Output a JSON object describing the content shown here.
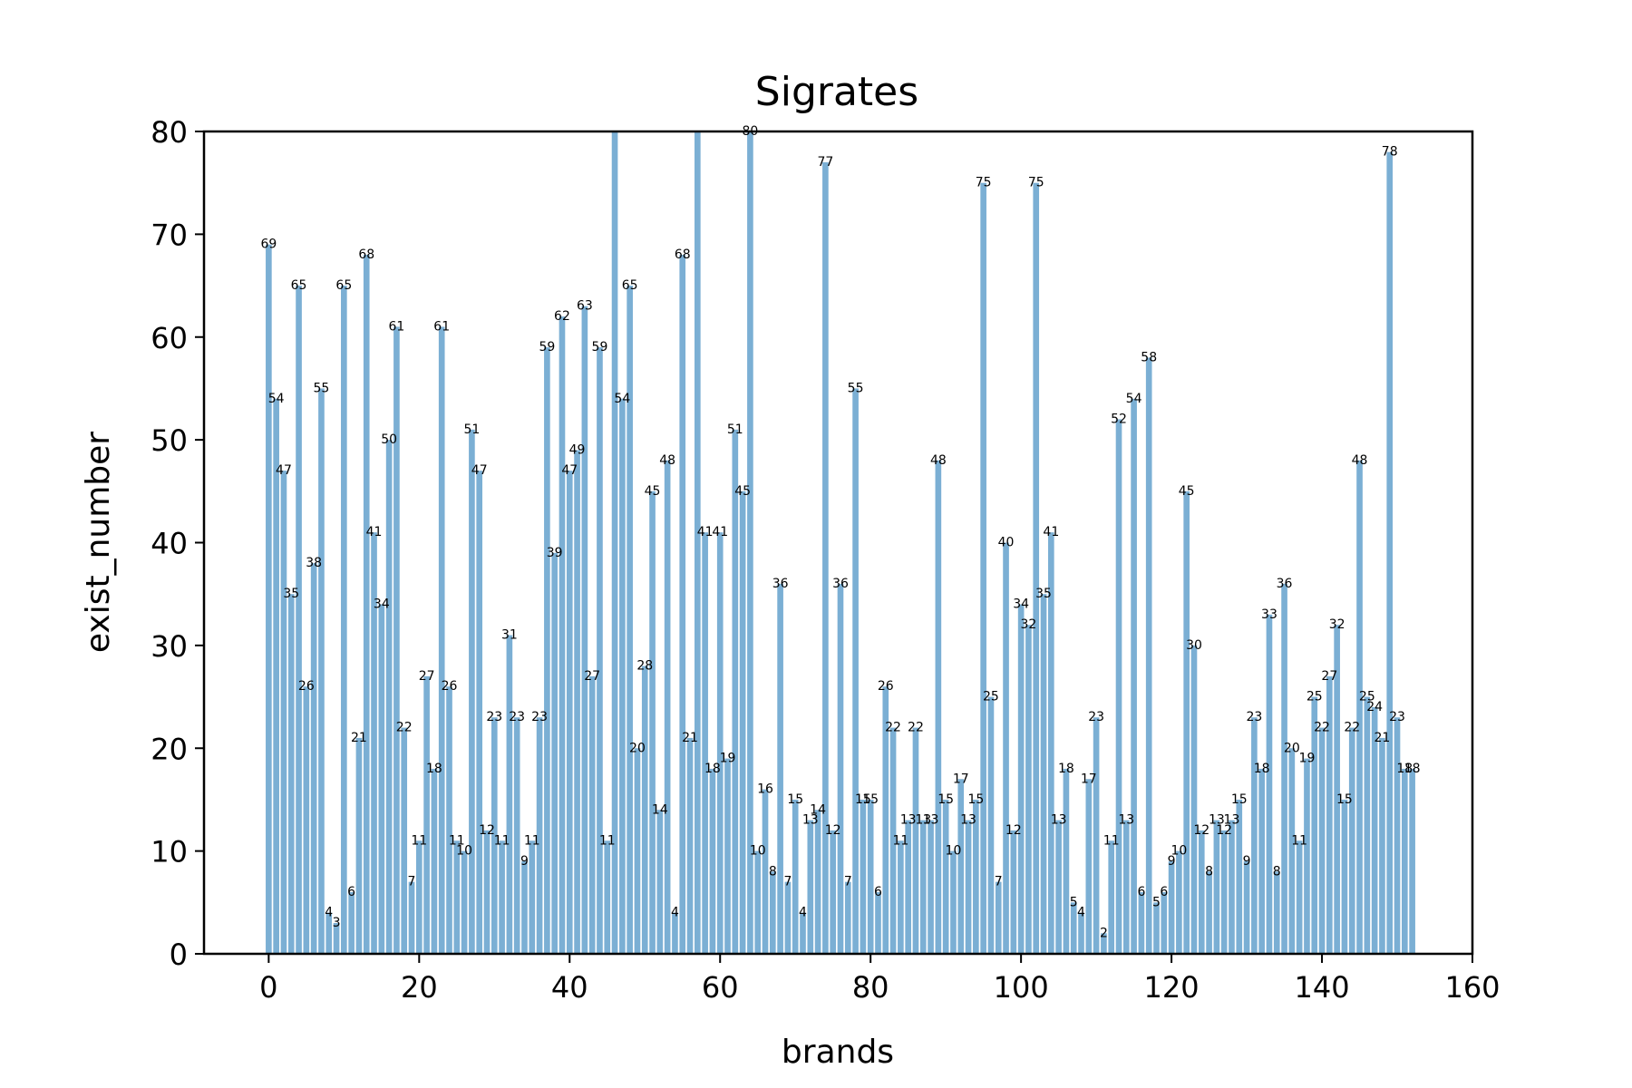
{
  "chart_data": {
    "type": "bar",
    "title": "Sigrates",
    "xlabel": "brands",
    "ylabel": "exist_number",
    "xlim": [
      -8.6,
      160
    ],
    "ylim": [
      0,
      80
    ],
    "xticks": [
      0,
      20,
      40,
      60,
      80,
      100,
      120,
      140,
      160
    ],
    "yticks": [
      0,
      10,
      20,
      30,
      40,
      50,
      60,
      70,
      80
    ],
    "grid": false,
    "bar_color": "#7bafd4",
    "x": [
      0,
      1,
      2,
      3,
      4,
      5,
      6,
      7,
      8,
      9,
      10,
      11,
      12,
      13,
      14,
      15,
      16,
      17,
      18,
      19,
      20,
      21,
      22,
      23,
      24,
      25,
      26,
      27,
      28,
      29,
      30,
      31,
      32,
      33,
      34,
      35,
      36,
      37,
      38,
      39,
      40,
      41,
      42,
      43,
      44,
      45,
      46,
      47,
      48,
      49,
      50,
      51,
      52,
      53,
      54,
      55,
      56,
      57,
      58,
      59,
      60,
      61,
      62,
      63,
      64,
      65,
      66,
      67,
      68,
      69,
      70,
      71,
      72,
      73,
      74,
      75,
      76,
      77,
      78,
      79,
      80,
      81,
      82,
      83,
      84,
      85,
      86,
      87,
      88,
      89,
      90,
      91,
      92,
      93,
      94,
      95,
      96,
      97,
      98,
      99,
      100,
      101,
      102,
      103,
      104,
      105,
      106,
      107,
      108,
      109,
      110,
      111,
      112,
      113,
      114,
      115,
      116,
      117,
      118,
      119,
      120,
      121,
      122,
      123,
      124,
      125,
      126,
      127,
      128,
      129,
      130,
      131,
      132,
      133,
      134,
      135,
      136,
      137,
      138,
      139,
      140,
      141,
      142,
      143,
      144,
      145,
      146,
      147,
      148,
      149,
      150,
      151,
      152
    ],
    "values": [
      69,
      54,
      47,
      35,
      65,
      26,
      38,
      55,
      4,
      3,
      65,
      6,
      21,
      68,
      41,
      34,
      50,
      61,
      22,
      7,
      11,
      27,
      18,
      61,
      26,
      11,
      10,
      51,
      47,
      12,
      23,
      11,
      31,
      23,
      9,
      11,
      23,
      59,
      39,
      62,
      47,
      49,
      63,
      27,
      59,
      11,
      81,
      54,
      65,
      20,
      28,
      45,
      14,
      48,
      4,
      68,
      21,
      81,
      41,
      18,
      41,
      19,
      51,
      45,
      80,
      10,
      16,
      8,
      36,
      7,
      15,
      4,
      13,
      14,
      77,
      12,
      36,
      7,
      55,
      15,
      15,
      6,
      26,
      22,
      11,
      13,
      22,
      13,
      13,
      48,
      15,
      10,
      17,
      13,
      15,
      75,
      25,
      7,
      40,
      12,
      34,
      32,
      75,
      35,
      41,
      13,
      18,
      5,
      4,
      17,
      23,
      2,
      11,
      52,
      13,
      54,
      6,
      58,
      5,
      6,
      9,
      10,
      45,
      30,
      12,
      8,
      13,
      12,
      13,
      15,
      9,
      23,
      18,
      33,
      8,
      36,
      20,
      11,
      19,
      25,
      22,
      27,
      32,
      15,
      22,
      48,
      25,
      24,
      21,
      78,
      23,
      18,
      18
    ]
  }
}
